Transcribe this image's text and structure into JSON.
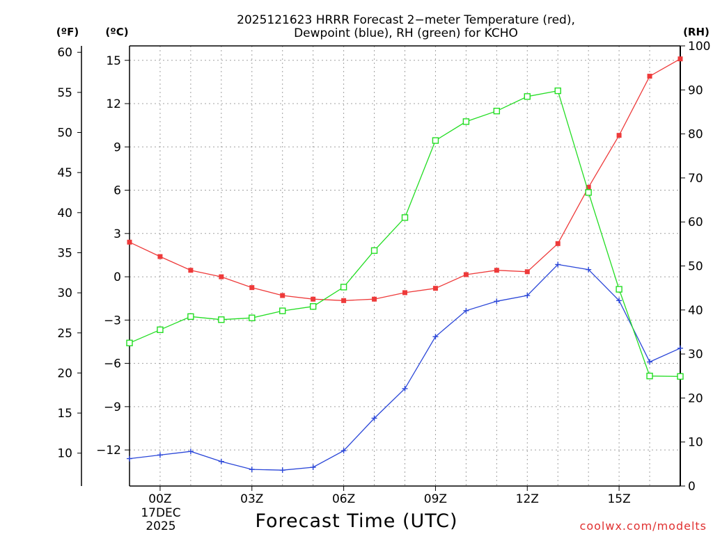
{
  "chart_data": {
    "type": "line",
    "title": "2025121623 HRRR Forecast 2−meter Temperature (red),",
    "subtitle": "Dewpoint (blue), RH (green) for KCHO",
    "xlabel": "Forecast Time (UTC)",
    "date_line1": "17DEC",
    "date_line2": "2025",
    "credit": "coolwx.com/modelts",
    "units": {
      "fahrenheit": "(ºF)",
      "celsius": "(ºC)",
      "rh": "(RH)"
    },
    "hours": [
      -1,
      0,
      1,
      2,
      3,
      4,
      5,
      6,
      7,
      8,
      9,
      10,
      11,
      12,
      13,
      14,
      15,
      16,
      17
    ],
    "x_ticks": [
      {
        "hour": 0,
        "label": "00Z"
      },
      {
        "hour": 3,
        "label": "03Z"
      },
      {
        "hour": 6,
        "label": "06Z"
      },
      {
        "hour": 9,
        "label": "09Z"
      },
      {
        "hour": 12,
        "label": "12Z"
      },
      {
        "hour": 15,
        "label": "15Z"
      }
    ],
    "celsius_axis": {
      "range": [
        -14.5,
        16.0
      ],
      "ticks": [
        {
          "value": 15,
          "label": "15"
        },
        {
          "value": 12,
          "label": "12"
        },
        {
          "value": 9,
          "label": "9"
        },
        {
          "value": 6,
          "label": "6"
        },
        {
          "value": 3,
          "label": "3"
        },
        {
          "value": 0,
          "label": "0"
        },
        {
          "value": -3,
          "label": "−3"
        },
        {
          "value": -6,
          "label": "−6"
        },
        {
          "value": -9,
          "label": "−9"
        },
        {
          "value": -12,
          "label": "−12"
        }
      ]
    },
    "fahrenheit_axis": {
      "ticks": [
        {
          "value": 60,
          "label": "60"
        },
        {
          "value": 55,
          "label": "55"
        },
        {
          "value": 50,
          "label": "50"
        },
        {
          "value": 45,
          "label": "45"
        },
        {
          "value": 40,
          "label": "40"
        },
        {
          "value": 35,
          "label": "35"
        },
        {
          "value": 30,
          "label": "30"
        },
        {
          "value": 25,
          "label": "25"
        },
        {
          "value": 20,
          "label": "20"
        },
        {
          "value": 15,
          "label": "15"
        },
        {
          "value": 10,
          "label": "10"
        }
      ]
    },
    "rh_axis": {
      "range": [
        0,
        100
      ],
      "ticks": [
        {
          "value": 100,
          "label": "100"
        },
        {
          "value": 90,
          "label": "90"
        },
        {
          "value": 80,
          "label": "80"
        },
        {
          "value": 70,
          "label": "70"
        },
        {
          "value": 60,
          "label": "60"
        },
        {
          "value": 50,
          "label": "50"
        },
        {
          "value": 40,
          "label": "40"
        },
        {
          "value": 30,
          "label": "30"
        },
        {
          "value": 20,
          "label": "20"
        },
        {
          "value": 10,
          "label": "10"
        },
        {
          "value": 0,
          "label": "0"
        }
      ]
    },
    "series": [
      {
        "name": "Temperature",
        "unit": "C",
        "axis": "celsius",
        "color": "#ee3a3a",
        "marker": "filled-square",
        "values": [
          2.4,
          1.4,
          0.45,
          0.0,
          -0.75,
          -1.3,
          -1.55,
          -1.65,
          -1.55,
          -1.1,
          -0.8,
          0.15,
          0.45,
          0.35,
          2.3,
          6.2,
          9.8,
          13.9,
          15.1
        ]
      },
      {
        "name": "Dewpoint",
        "unit": "C",
        "axis": "celsius",
        "color": "#2a46d8",
        "marker": "plus",
        "values": [
          -12.6,
          -12.35,
          -12.1,
          -12.8,
          -13.35,
          -13.4,
          -13.2,
          -12.05,
          -9.8,
          -7.75,
          -4.15,
          -2.35,
          -1.7,
          -1.3,
          0.85,
          0.5,
          -1.65,
          -5.9,
          -4.95
        ]
      },
      {
        "name": "RH",
        "unit": "%",
        "axis": "rh",
        "color": "#22dd22",
        "marker": "open-square",
        "values": [
          32.5,
          35.5,
          38.5,
          37.8,
          38.2,
          39.8,
          40.8,
          45.2,
          53.5,
          61.0,
          78.5,
          82.8,
          85.2,
          88.5,
          89.8,
          66.7,
          44.7,
          25.0,
          24.9
        ]
      }
    ]
  }
}
